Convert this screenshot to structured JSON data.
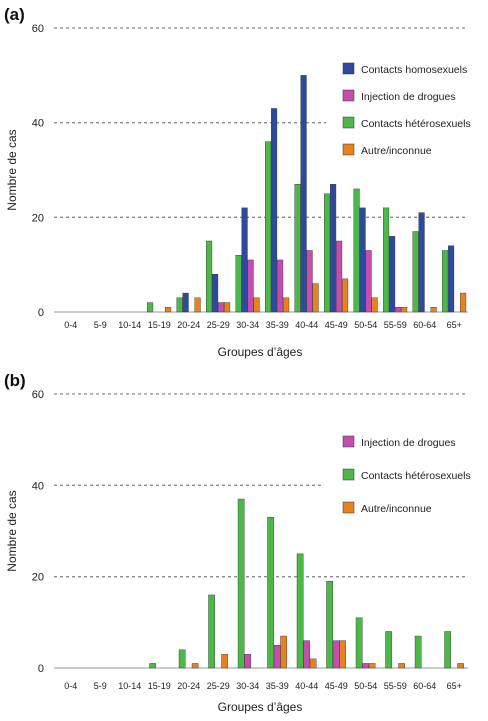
{
  "chart_data": [
    {
      "type": "bar",
      "panel_label": "(a)",
      "xlabel": "Groupes d’âges",
      "ylabel": "Nombre de cas",
      "ylim": [
        0,
        60
      ],
      "yticks": [
        "0",
        "20",
        "40",
        "60"
      ],
      "grid": true,
      "legend_position": "right",
      "categories": [
        "0-4",
        "5-9",
        "10-14",
        "15-19",
        "20-24",
        "25-29",
        "30-34",
        "35-39",
        "40-44",
        "45-49",
        "50-54",
        "55-59",
        "60-64",
        "65+"
      ],
      "series": [
        {
          "name": "Contacts hétérosexuels",
          "color": "#4cb848",
          "values": [
            0,
            0,
            0,
            2,
            3,
            15,
            12,
            36,
            27,
            25,
            26,
            22,
            17,
            13
          ]
        },
        {
          "name": "Contacts homosexuels",
          "color": "#2e4a9e",
          "values": [
            0,
            0,
            0,
            0,
            4,
            8,
            22,
            43,
            50,
            27,
            22,
            16,
            21,
            14
          ]
        },
        {
          "name": "Injection de drogues",
          "color": "#c44dae",
          "values": [
            0,
            0,
            0,
            0,
            0,
            2,
            11,
            11,
            13,
            15,
            13,
            1,
            0,
            0
          ]
        },
        {
          "name": "Autre/inconnue",
          "color": "#e8821f",
          "values": [
            0,
            0,
            0,
            1,
            3,
            2,
            3,
            3,
            6,
            7,
            3,
            1,
            1,
            4
          ]
        }
      ],
      "legend_order": [
        "Contacts homosexuels",
        "Injection de drogues",
        "Contacts hétérosexuels",
        "Autre/inconnue"
      ]
    },
    {
      "type": "bar",
      "panel_label": "(b)",
      "xlabel": "Groupes d’âges",
      "ylabel": "Nombre de cas",
      "ylim": [
        0,
        60
      ],
      "yticks": [
        "0",
        "20",
        "40",
        "60"
      ],
      "grid": true,
      "legend_position": "right",
      "categories": [
        "0-4",
        "5-9",
        "10-14",
        "15-19",
        "20-24",
        "25-29",
        "30-34",
        "35-39",
        "40-44",
        "45-49",
        "50-54",
        "55-59",
        "60-64",
        "65+"
      ],
      "series": [
        {
          "name": "Contacts hétérosexuels",
          "color": "#4cb848",
          "values": [
            0,
            0,
            0,
            1,
            4,
            16,
            37,
            33,
            25,
            19,
            11,
            8,
            7,
            8
          ]
        },
        {
          "name": "Injection de drogues",
          "color": "#c44dae",
          "values": [
            0,
            0,
            0,
            0,
            0,
            0,
            3,
            5,
            6,
            6,
            1,
            0,
            0,
            0
          ]
        },
        {
          "name": "Autre/inconnue",
          "color": "#e8821f",
          "values": [
            0,
            0,
            0,
            0,
            1,
            3,
            0,
            7,
            2,
            6,
            1,
            1,
            0,
            1
          ]
        }
      ],
      "legend_order": [
        "Injection de drogues",
        "Contacts hétérosexuels",
        "Autre/inconnue"
      ]
    }
  ]
}
